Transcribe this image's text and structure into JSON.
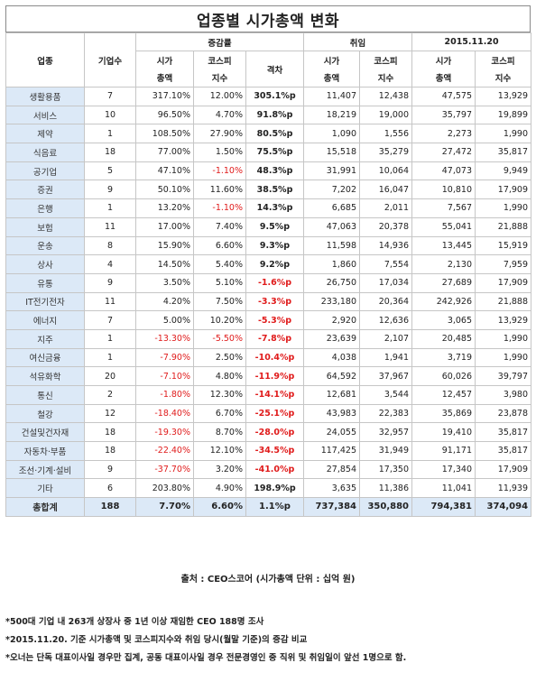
{
  "title": "업종별 시가총액 변화",
  "headers": {
    "industry": "업종",
    "company_count": "기업수",
    "change_rate": "증감률",
    "market_cap_1": "시가",
    "market_cap_2": "총액",
    "kospi_1": "코스피",
    "kospi_2": "지수",
    "gap": "격차",
    "inauguration": "취임",
    "date": "2015.11.20"
  },
  "rows": [
    {
      "industry": "생활용품",
      "count": "7",
      "cap_rate": "317.10%",
      "kospi_rate": "12.00%",
      "gap": "305.1%p",
      "inaug_cap": "11,407",
      "inaug_kospi": "12,438",
      "date_cap": "47,575",
      "date_kospi": "13,929"
    },
    {
      "industry": "서비스",
      "count": "10",
      "cap_rate": "96.50%",
      "kospi_rate": "4.70%",
      "gap": "91.8%p",
      "inaug_cap": "18,219",
      "inaug_kospi": "19,000",
      "date_cap": "35,797",
      "date_kospi": "19,899"
    },
    {
      "industry": "제약",
      "count": "1",
      "cap_rate": "108.50%",
      "kospi_rate": "27.90%",
      "gap": "80.5%p",
      "inaug_cap": "1,090",
      "inaug_kospi": "1,556",
      "date_cap": "2,273",
      "date_kospi": "1,990"
    },
    {
      "industry": "식음료",
      "count": "18",
      "cap_rate": "77.00%",
      "kospi_rate": "1.50%",
      "gap": "75.5%p",
      "inaug_cap": "15,518",
      "inaug_kospi": "35,279",
      "date_cap": "27,472",
      "date_kospi": "35,817"
    },
    {
      "industry": "공기업",
      "count": "5",
      "cap_rate": "47.10%",
      "kospi_rate": "-1.10%",
      "gap": "48.3%p",
      "inaug_cap": "31,991",
      "inaug_kospi": "10,064",
      "date_cap": "47,073",
      "date_kospi": "9,949"
    },
    {
      "industry": "증권",
      "count": "9",
      "cap_rate": "50.10%",
      "kospi_rate": "11.60%",
      "gap": "38.5%p",
      "inaug_cap": "7,202",
      "inaug_kospi": "16,047",
      "date_cap": "10,810",
      "date_kospi": "17,909"
    },
    {
      "industry": "은행",
      "count": "1",
      "cap_rate": "13.20%",
      "kospi_rate": "-1.10%",
      "gap": "14.3%p",
      "inaug_cap": "6,685",
      "inaug_kospi": "2,011",
      "date_cap": "7,567",
      "date_kospi": "1,990"
    },
    {
      "industry": "보험",
      "count": "11",
      "cap_rate": "17.00%",
      "kospi_rate": "7.40%",
      "gap": "9.5%p",
      "inaug_cap": "47,063",
      "inaug_kospi": "20,378",
      "date_cap": "55,041",
      "date_kospi": "21,888"
    },
    {
      "industry": "운송",
      "count": "8",
      "cap_rate": "15.90%",
      "kospi_rate": "6.60%",
      "gap": "9.3%p",
      "inaug_cap": "11,598",
      "inaug_kospi": "14,936",
      "date_cap": "13,445",
      "date_kospi": "15,919"
    },
    {
      "industry": "상사",
      "count": "4",
      "cap_rate": "14.50%",
      "kospi_rate": "5.40%",
      "gap": "9.2%p",
      "inaug_cap": "1,860",
      "inaug_kospi": "7,554",
      "date_cap": "2,130",
      "date_kospi": "7,959"
    },
    {
      "industry": "유통",
      "count": "9",
      "cap_rate": "3.50%",
      "kospi_rate": "5.10%",
      "gap": "-1.6%p",
      "inaug_cap": "26,750",
      "inaug_kospi": "17,034",
      "date_cap": "27,689",
      "date_kospi": "17,909"
    },
    {
      "industry": "IT전기전자",
      "count": "11",
      "cap_rate": "4.20%",
      "kospi_rate": "7.50%",
      "gap": "-3.3%p",
      "inaug_cap": "233,180",
      "inaug_kospi": "20,364",
      "date_cap": "242,926",
      "date_kospi": "21,888"
    },
    {
      "industry": "에너지",
      "count": "7",
      "cap_rate": "5.00%",
      "kospi_rate": "10.20%",
      "gap": "-5.3%p",
      "inaug_cap": "2,920",
      "inaug_kospi": "12,636",
      "date_cap": "3,065",
      "date_kospi": "13,929"
    },
    {
      "industry": "지주",
      "count": "1",
      "cap_rate": "-13.30%",
      "kospi_rate": "-5.50%",
      "gap": "-7.8%p",
      "inaug_cap": "23,639",
      "inaug_kospi": "2,107",
      "date_cap": "20,485",
      "date_kospi": "1,990"
    },
    {
      "industry": "여신금융",
      "count": "1",
      "cap_rate": "-7.90%",
      "kospi_rate": "2.50%",
      "gap": "-10.4%p",
      "inaug_cap": "4,038",
      "inaug_kospi": "1,941",
      "date_cap": "3,719",
      "date_kospi": "1,990"
    },
    {
      "industry": "석유화학",
      "count": "20",
      "cap_rate": "-7.10%",
      "kospi_rate": "4.80%",
      "gap": "-11.9%p",
      "inaug_cap": "64,592",
      "inaug_kospi": "37,967",
      "date_cap": "60,026",
      "date_kospi": "39,797"
    },
    {
      "industry": "통신",
      "count": "2",
      "cap_rate": "-1.80%",
      "kospi_rate": "12.30%",
      "gap": "-14.1%p",
      "inaug_cap": "12,681",
      "inaug_kospi": "3,544",
      "date_cap": "12,457",
      "date_kospi": "3,980"
    },
    {
      "industry": "철강",
      "count": "12",
      "cap_rate": "-18.40%",
      "kospi_rate": "6.70%",
      "gap": "-25.1%p",
      "inaug_cap": "43,983",
      "inaug_kospi": "22,383",
      "date_cap": "35,869",
      "date_kospi": "23,878"
    },
    {
      "industry": "건설및건자재",
      "count": "18",
      "cap_rate": "-19.30%",
      "kospi_rate": "8.70%",
      "gap": "-28.0%p",
      "inaug_cap": "24,055",
      "inaug_kospi": "32,957",
      "date_cap": "19,410",
      "date_kospi": "35,817"
    },
    {
      "industry": "자동차·부품",
      "count": "18",
      "cap_rate": "-22.40%",
      "kospi_rate": "12.10%",
      "gap": "-34.5%p",
      "inaug_cap": "117,425",
      "inaug_kospi": "31,949",
      "date_cap": "91,171",
      "date_kospi": "35,817"
    },
    {
      "industry": "조선·기계·설비",
      "count": "9",
      "cap_rate": "-37.70%",
      "kospi_rate": "3.20%",
      "gap": "-41.0%p",
      "inaug_cap": "27,854",
      "inaug_kospi": "17,350",
      "date_cap": "17,340",
      "date_kospi": "17,909"
    },
    {
      "industry": "기타",
      "count": "6",
      "cap_rate": "203.80%",
      "kospi_rate": "4.90%",
      "gap": "198.9%p",
      "inaug_cap": "3,635",
      "inaug_kospi": "11,386",
      "date_cap": "11,041",
      "date_kospi": "11,939"
    }
  ],
  "total": {
    "industry": "총합계",
    "count": "188",
    "cap_rate": "7.70%",
    "kospi_rate": "6.60%",
    "gap": "1.1%p",
    "inaug_cap": "737,384",
    "inaug_kospi": "350,880",
    "date_cap": "794,381",
    "date_kospi": "374,094"
  },
  "source": "출처 : CEO스코어 (시가총액 단위 : 십억 원)",
  "notes": [
    "*500대 기업 내 263개 상장사 중 1년 이상 재임한 CEO 188명 조사",
    "*2015.11.20. 기준 시가총액 및 코스피지수와 취임 당시(월말 기준)의 증감 비교",
    "*오너는 단독 대표이사일 경우만 집계, 공동 대표이사일 경우 전문경영인 중 직위 및 취임일이 앞선 1명으로 함."
  ],
  "colors": {
    "negative": "#e01b1b",
    "category_bg": "#dce9f7"
  }
}
